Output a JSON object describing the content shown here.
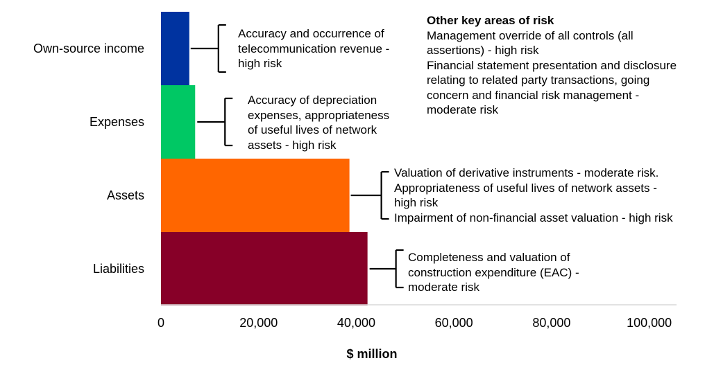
{
  "chart_data": {
    "type": "bar",
    "orientation": "horizontal",
    "categories": [
      "Own-source income",
      "Expenses",
      "Assets",
      "Liabilities"
    ],
    "values": [
      5800,
      7000,
      38600,
      42300
    ],
    "colors": [
      "#0033a0",
      "#00c864",
      "#ff6600",
      "#870028"
    ],
    "xlabel": "$ million",
    "xlim": [
      0,
      110000
    ],
    "xticks": [
      0,
      20000,
      40000,
      60000,
      80000,
      100000
    ],
    "xtick_labels": [
      "0",
      "20,000",
      "40,000",
      "60,000",
      "80,000",
      "100,000"
    ],
    "grid": false,
    "legend": "none"
  },
  "annotations": [
    {
      "lines": [
        "Accuracy and occurrence of",
        "telecommunication revenue -",
        "high risk"
      ]
    },
    {
      "lines": [
        "Accuracy of depreciation",
        "expenses, appropriateness",
        "of useful lives of network",
        "assets - high risk"
      ]
    },
    {
      "lines": [
        "Valuation of derivative instruments - moderate risk.",
        "Appropriateness of useful lives of network assets -",
        "high risk",
        "Impairment of non-financial asset valuation - high risk"
      ]
    },
    {
      "lines": [
        "Completeness and valuation of",
        "construction expenditure (EAC) -",
        "moderate risk"
      ]
    }
  ],
  "other_risks": {
    "title": "Other key areas of risk",
    "lines": [
      "Management override of all controls (all",
      "assertions) - high risk",
      "Financial statement presentation and disclosure",
      "relating to related party transactions, going",
      "concern and financial risk management -",
      "moderate risk"
    ]
  }
}
